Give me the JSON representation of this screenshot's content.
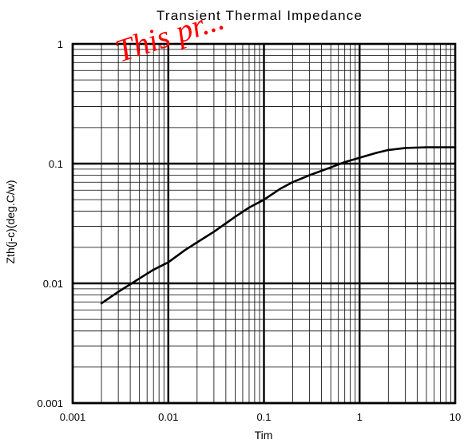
{
  "chart_data": {
    "type": "line",
    "title": "Transient Thermal Impedance",
    "xlabel": "Tim",
    "ylabel": "Zth(j-c)(deg.C/w)",
    "xscale": "log",
    "yscale": "log",
    "xlim": [
      0.001,
      10
    ],
    "ylim": [
      0.001,
      1
    ],
    "grid": true,
    "x_ticks": [
      "0.001",
      "0.01",
      "0.1",
      "1",
      "10"
    ],
    "y_ticks": [
      "0.001",
      "0.01",
      "0.1",
      "1"
    ],
    "series": [
      {
        "x": [
          0.002,
          0.003,
          0.005,
          0.007,
          0.01,
          0.015,
          0.02,
          0.03,
          0.05,
          0.07,
          0.1,
          0.15,
          0.2,
          0.3,
          0.5,
          0.7,
          1,
          1.5,
          2,
          3,
          5,
          10
        ],
        "y": [
          0.0068,
          0.0085,
          0.011,
          0.013,
          0.015,
          0.019,
          0.022,
          0.027,
          0.036,
          0.043,
          0.05,
          0.062,
          0.07,
          0.08,
          0.093,
          0.103,
          0.112,
          0.123,
          0.13,
          0.135,
          0.137,
          0.137
        ]
      }
    ],
    "watermark": "This pr..."
  },
  "colors": {
    "line": "#000000",
    "grid": "#000000",
    "watermark": "#ff0000"
  }
}
